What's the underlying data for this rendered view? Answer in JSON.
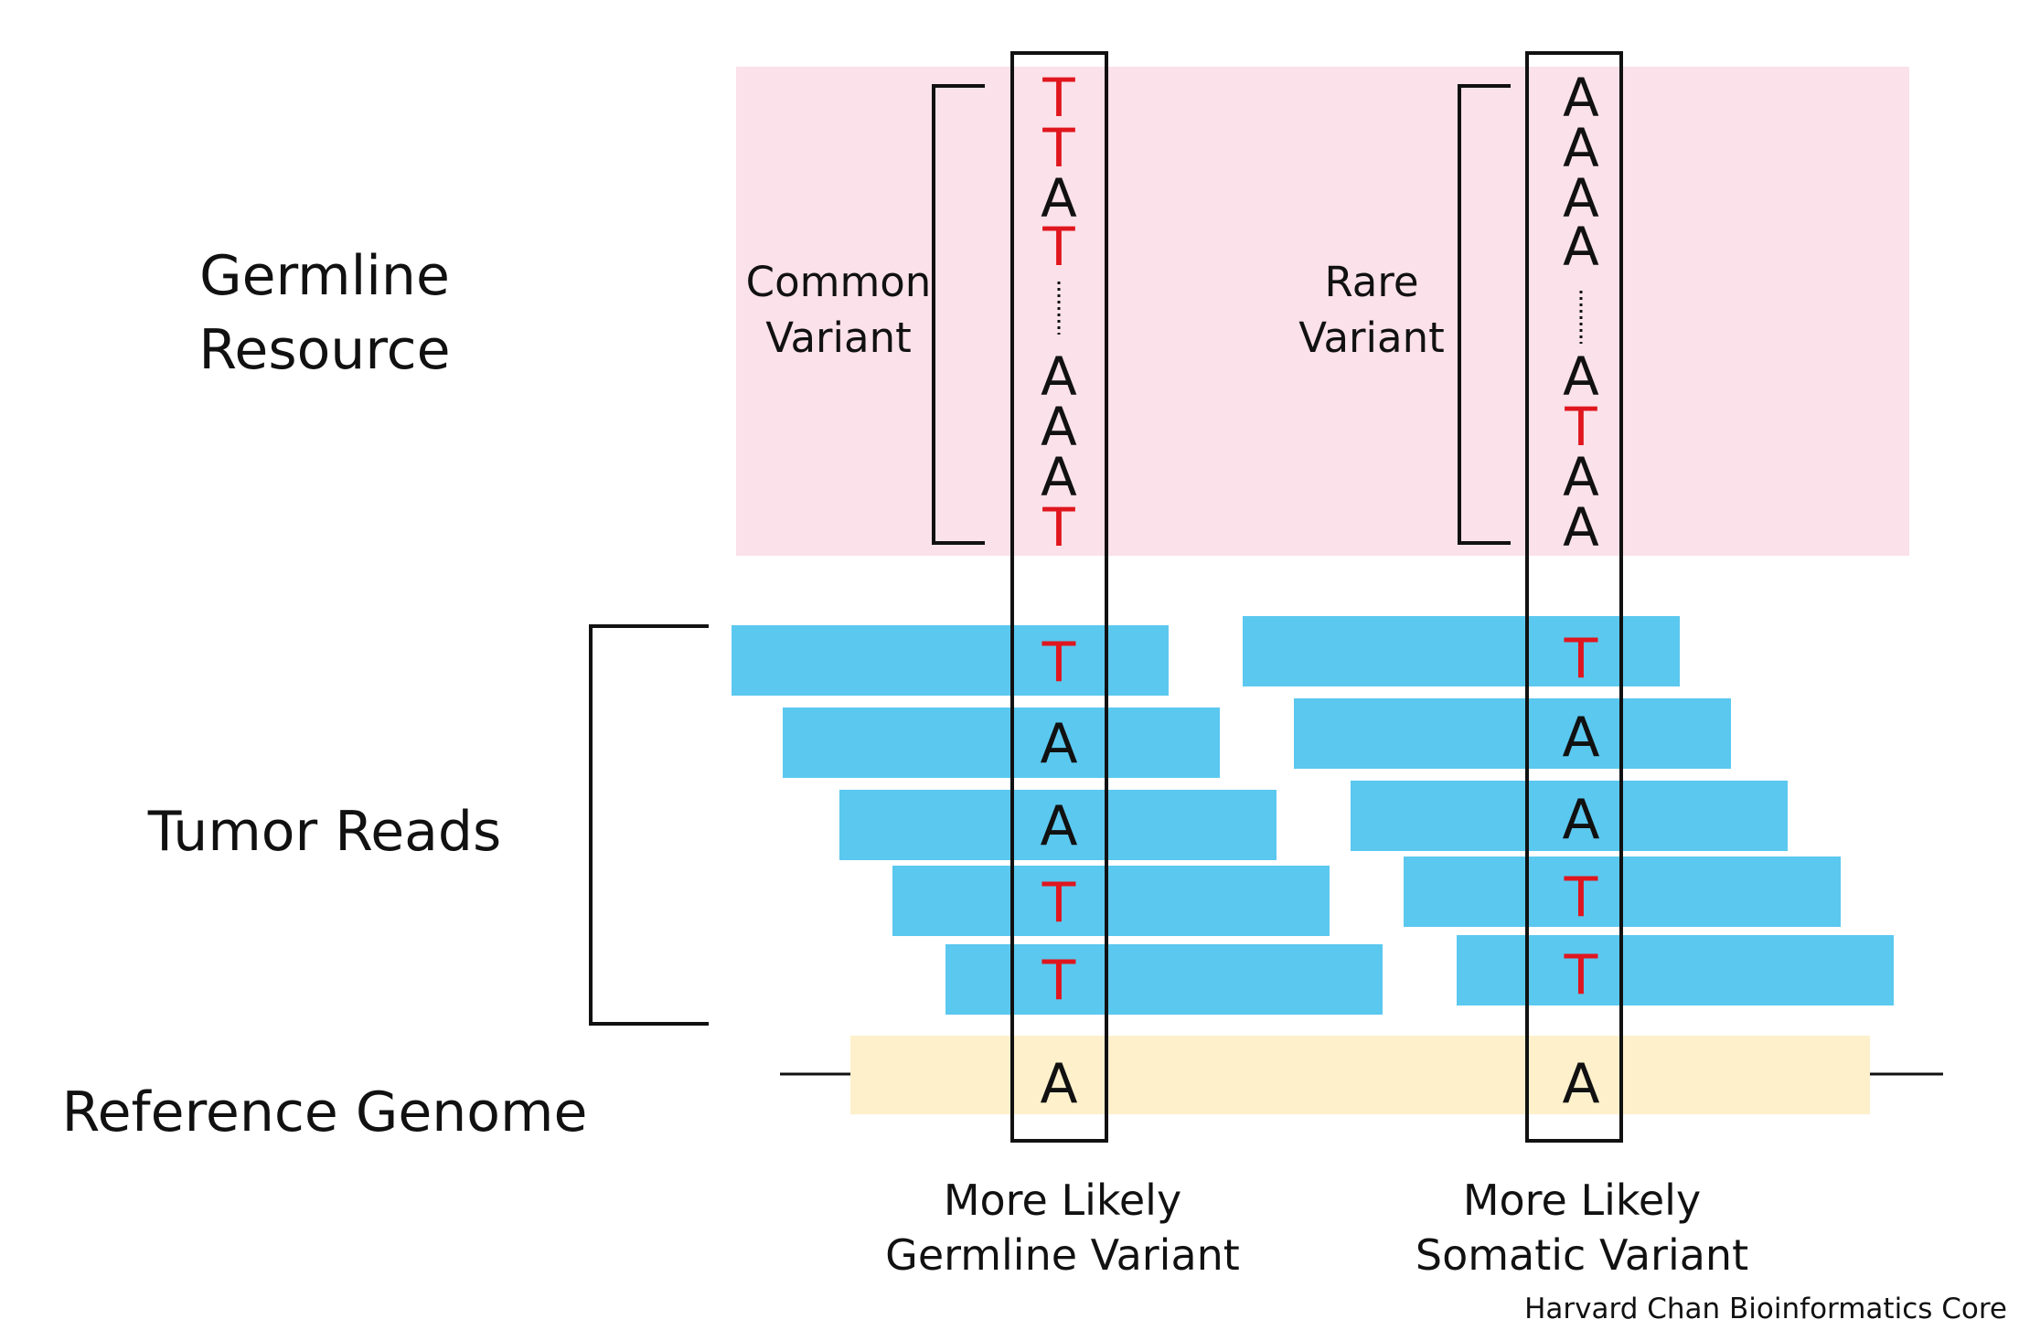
{
  "row_labels": {
    "germline_resource_line1": "Germline",
    "germline_resource_line2": "Resource",
    "tumor_reads": "Tumor Reads",
    "reference_genome": "Reference Genome"
  },
  "left_column": {
    "variant_label_line1": "Common",
    "variant_label_line2": "Variant",
    "resource_top": [
      "T",
      "T",
      "A",
      "T"
    ],
    "resource_bottom": [
      "A",
      "A",
      "A",
      "T"
    ],
    "reads": [
      "T",
      "A",
      "A",
      "T",
      "T"
    ],
    "reference": "A",
    "caption_line1": "More Likely",
    "caption_line2": "Germline Variant"
  },
  "right_column": {
    "variant_label_line1": "Rare",
    "variant_label_line2": "Variant",
    "resource_top": [
      "A",
      "A",
      "A",
      "A"
    ],
    "resource_bottom": [
      "A",
      "T",
      "A",
      "A"
    ],
    "reads": [
      "T",
      "A",
      "A",
      "T",
      "T"
    ],
    "reference": "A",
    "caption_line1": "More Likely",
    "caption_line2": "Somatic Variant"
  },
  "credit": "Harvard Chan Bioinformatics Core",
  "colors": {
    "resource_bg": "#fbe1e9",
    "read_fill": "#5bc8ef",
    "reference_fill": "#fdf0cb",
    "alt_base": "#e0161e",
    "ref_base": "#111111",
    "line": "#111111"
  }
}
